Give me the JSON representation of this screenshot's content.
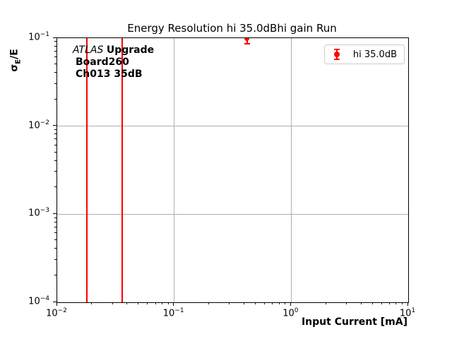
{
  "figure": {
    "title": "Energy Resolution hi 35.0dBhi gain Run"
  },
  "axes": {
    "xlabel": "Input Current [mA]",
    "ylabel_sigma": "σ",
    "ylabel_sub": "E",
    "ylabel_rest": "/E"
  },
  "annotation": {
    "line1_italic": "ATLAS",
    "line1_bold": "Upgrade",
    "line2": "Board260",
    "line3": "Ch013 35dB"
  },
  "legend": {
    "entries": [
      {
        "label": "hi 35.0dB",
        "color": "#ff0000",
        "marker": "errorbar-point"
      }
    ],
    "position": "upper-right"
  },
  "chart_data": {
    "type": "scatter",
    "title": "Energy Resolution hi 35.0dBhi gain Run",
    "xlabel": "Input Current [mA]",
    "ylabel": "σE/E",
    "xscale": "log",
    "yscale": "log",
    "xlim": [
      0.01,
      10
    ],
    "ylim": [
      0.0001,
      0.1
    ],
    "grid": true,
    "grid_color": "#b0b0b0",
    "x_tick_exponents": [
      -2,
      -1,
      0,
      1
    ],
    "y_tick_exponents": [
      -1,
      -2,
      -3,
      -4
    ],
    "series": [
      {
        "name": "hi 35.0dB",
        "color": "#ff0000",
        "marker": "circle-errorbar",
        "points": [
          {
            "x": 0.42,
            "y": 0.1,
            "yerr": 0.013
          }
        ]
      }
    ],
    "vlines": [
      {
        "x": 0.018,
        "color": "#ff0000"
      },
      {
        "x": 0.036,
        "color": "#ff0000"
      }
    ]
  }
}
